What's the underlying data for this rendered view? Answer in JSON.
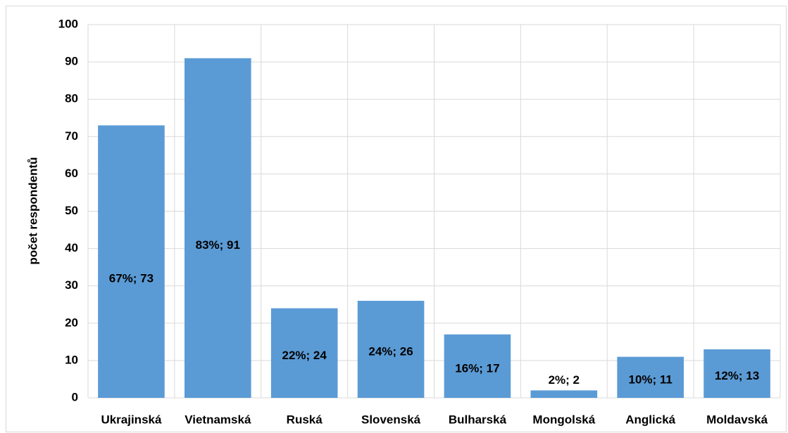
{
  "chart_data": {
    "type": "bar",
    "y_label": "počet respondentů",
    "categories": [
      "Ukrajinská",
      "Vietnamská",
      "Ruská",
      "Slovenská",
      "Bulharská",
      "Mongolská",
      "Anglická",
      "Moldavská"
    ],
    "values": [
      73,
      91,
      24,
      26,
      17,
      2,
      11,
      13
    ],
    "value_labels": [
      "67%; 73",
      "83%; 91",
      "22%; 24",
      "24%; 26",
      "16%; 17",
      "2%; 2",
      "10%; 11",
      "12%; 13"
    ],
    "color": "#5b9bd5",
    "ylim": [
      0,
      100
    ],
    "yticks": [
      0,
      10,
      20,
      30,
      40,
      50,
      60,
      70,
      80,
      90,
      100
    ],
    "grid": true
  }
}
